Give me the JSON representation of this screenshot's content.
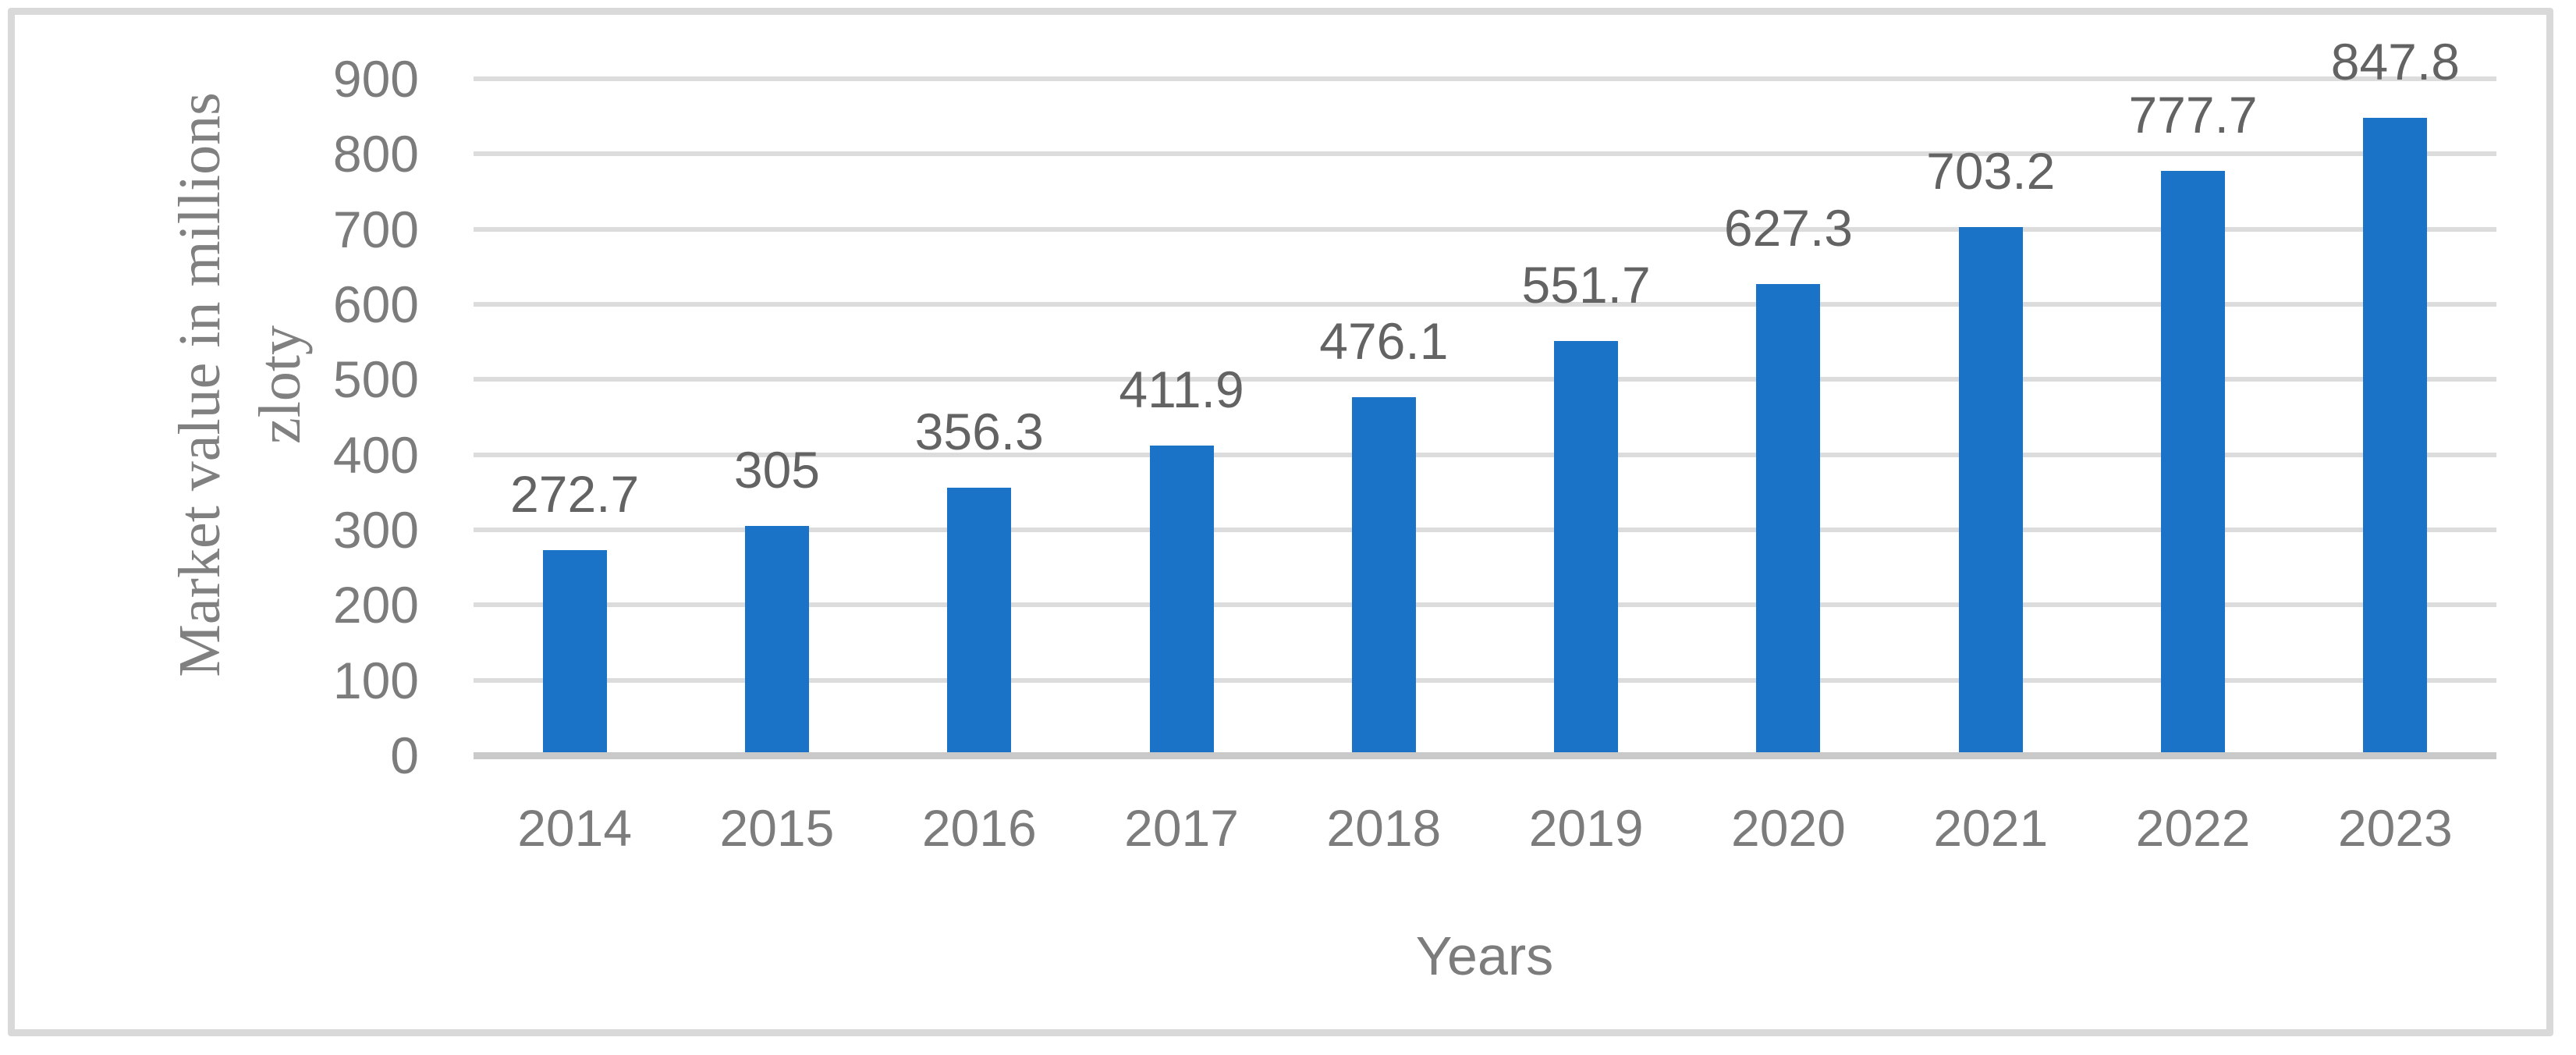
{
  "chart_data": {
    "type": "bar",
    "title": "",
    "categories": [
      "2014",
      "2015",
      "2016",
      "2017",
      "2018",
      "2019",
      "2020",
      "2021",
      "2022",
      "2023"
    ],
    "values": [
      272.7,
      305,
      356.3,
      411.9,
      476.1,
      551.7,
      627.3,
      703.2,
      777.7,
      847.8
    ],
    "data_labels": [
      "272.7",
      "305",
      "356.3",
      "411.9",
      "476.1",
      "551.7",
      "627.3",
      "703.2",
      "777.7",
      "847.8"
    ],
    "xlabel": "Years",
    "ylabel_line1": "Market value in millions",
    "ylabel_line2": "zloty",
    "y_ticks": [
      0,
      100,
      200,
      300,
      400,
      500,
      600,
      700,
      800,
      900
    ],
    "ylim": [
      0,
      900
    ],
    "grid": "horizontal",
    "legend_position": "none",
    "bar_color": "#1b73c7",
    "gridline_color": "#dcdcdc",
    "axis_line_color": "#c9c9c9",
    "label_text_color": "#636363",
    "tick_text_color": "#7c7c7c",
    "frame_border_color": "#d9d9d9"
  }
}
